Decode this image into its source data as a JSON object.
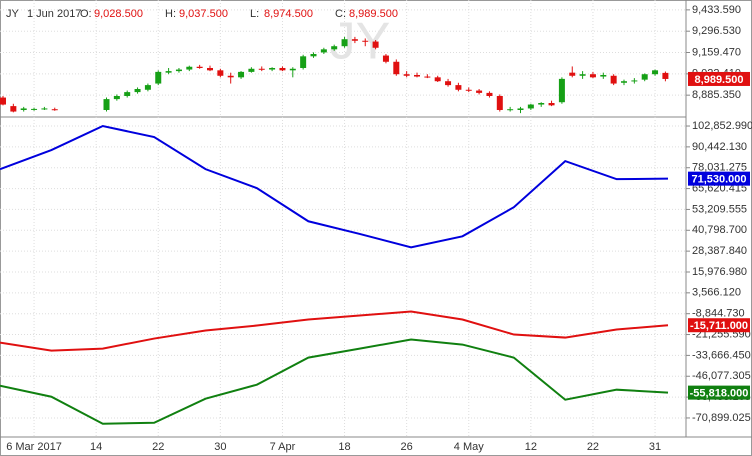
{
  "chart_data": [
    {
      "type": "candlestick",
      "header": {
        "symbol": "JY",
        "date": "1 Jun 2017",
        "fields": [
          {
            "label": "O:",
            "value": "9,028.500"
          },
          {
            "label": "H:",
            "value": "9,037.500"
          },
          {
            "label": "L:",
            "value": "8,974.500"
          },
          {
            "label": "C:",
            "value": "8,989.500"
          }
        ]
      },
      "categories": [
        null,
        null,
        null,
        "6 Mar 2017",
        null,
        null,
        null,
        null,
        null,
        "14",
        null,
        null,
        null,
        null,
        null,
        "22",
        null,
        null,
        null,
        null,
        null,
        "30",
        null,
        null,
        null,
        null,
        null,
        "7 Apr",
        null,
        null,
        null,
        null,
        null,
        "18",
        null,
        null,
        null,
        null,
        null,
        "26",
        null,
        null,
        null,
        null,
        null,
        "4 May",
        null,
        null,
        null,
        null,
        null,
        "12",
        null,
        null,
        null,
        null,
        null,
        "22",
        null,
        null,
        null,
        null,
        null,
        "31",
        null
      ],
      "open": [
        8870,
        8815,
        8790,
        8795,
        8797,
        8795,
        null,
        null,
        null,
        null,
        8790,
        8860,
        8880,
        8905,
        8920,
        8960,
        9030,
        9040,
        9050,
        9068,
        9060,
        9045,
        9010,
        9000,
        9035,
        9055,
        9050,
        9060,
        9045,
        9060,
        9135,
        9160,
        9180,
        9200,
        9245,
        9235,
        9230,
        9140,
        9100,
        9020,
        9015,
        9005,
        9000,
        8975,
        8950,
        8920,
        8915,
        8900,
        8880,
        8790,
        8790,
        8800,
        8825,
        8835,
        8840,
        9030,
        9010,
        9020,
        9005,
        9010,
        8965,
        8975,
        8985,
        9020,
        9028.5
      ],
      "high": [
        8880,
        8830,
        8810,
        8805,
        8810,
        8805,
        null,
        null,
        null,
        null,
        8870,
        8890,
        8915,
        8935,
        8960,
        9045,
        9060,
        9060,
        9075,
        9080,
        9075,
        9055,
        9030,
        9040,
        9065,
        9070,
        9065,
        9070,
        9065,
        9145,
        9160,
        9190,
        9210,
        9260,
        9260,
        9250,
        9240,
        9150,
        9115,
        9040,
        9030,
        9020,
        9010,
        8990,
        8965,
        8935,
        8925,
        8910,
        8890,
        8810,
        8810,
        8830,
        8840,
        8850,
        9000,
        9070,
        9040,
        9035,
        9030,
        9020,
        8985,
        8995,
        9025,
        9050,
        9037.5
      ],
      "low": [
        8820,
        8775,
        8780,
        8785,
        8790,
        8785,
        null,
        null,
        null,
        null,
        8780,
        8850,
        8870,
        8895,
        8910,
        8950,
        9020,
        9030,
        9040,
        9055,
        9040,
        9000,
        8960,
        8990,
        9030,
        9040,
        9040,
        9040,
        9000,
        9050,
        9125,
        9150,
        9170,
        9190,
        9220,
        9200,
        9180,
        9090,
        9010,
        9000,
        9000,
        8995,
        8970,
        8940,
        8910,
        8905,
        8890,
        8870,
        8780,
        8780,
        8770,
        8790,
        8810,
        8815,
        8830,
        9000,
        8990,
        8995,
        8990,
        8950,
        8950,
        8960,
        8975,
        9010,
        8974.5
      ],
      "close": [
        8825,
        8780,
        8800,
        8797,
        8800,
        8790,
        null,
        null,
        null,
        null,
        8860,
        8880,
        8905,
        8925,
        8950,
        9035,
        9040,
        9050,
        9068,
        9060,
        9045,
        9010,
        9000,
        9035,
        9055,
        9050,
        9060,
        9045,
        9055,
        9135,
        9150,
        9180,
        9200,
        9245,
        9235,
        9230,
        9190,
        9100,
        9020,
        9010,
        9005,
        9000,
        8975,
        8950,
        8920,
        8915,
        8900,
        8880,
        8790,
        8795,
        8800,
        8825,
        8835,
        8820,
        8990,
        9010,
        9020,
        9000,
        9015,
        8960,
        8975,
        8980,
        9020,
        9045,
        8989.5
      ],
      "up_color": "#16a016",
      "down_color": "#e01010",
      "last_label": "8,989.500",
      "ylim": [
        8745,
        9497
      ],
      "yticks": [
        {
          "value": 9433.59,
          "label": "9,433.590"
        },
        {
          "value": 9296.53,
          "label": "9,296.530"
        },
        {
          "value": 9159.47,
          "label": "9,159.470"
        },
        {
          "value": 9022.41,
          "label": "9,022.410"
        },
        {
          "value": 8885.35,
          "label": "8,885.350"
        }
      ],
      "grid": true
    },
    {
      "type": "line",
      "categories": [
        null,
        null,
        null,
        null,
        null,
        null,
        null,
        null,
        null,
        null,
        null,
        null,
        null,
        null
      ],
      "series": [
        {
          "color": "#0000dd",
          "values": [
            77195,
            88532,
            102853,
            96289,
            77195,
            65857,
            46166,
            38609,
            30652,
            37216,
            54520,
            81968,
            71228,
            71530
          ],
          "last_label": "71,530.000"
        },
        {
          "color": "#e01010",
          "values": [
            -26034,
            -30808,
            -29614,
            -23647,
            -18874,
            -15890,
            -12310,
            -9923,
            -7536,
            -12310,
            -21261,
            -23051,
            -18277,
            -15711
          ],
          "last_label": "-15,711.000"
        },
        {
          "color": "#108010",
          "values": [
            -51692,
            -58256,
            -74367,
            -73770,
            -59449,
            -51095,
            -34985,
            -29614,
            -24243,
            -27226,
            -34985,
            -60046,
            -54079,
            -55818
          ],
          "last_label": "-55,818.000"
        }
      ],
      "ylim": [
        -82236,
        108223
      ],
      "yticks": [
        {
          "value": 102852.99,
          "label": "102,852.990"
        },
        {
          "value": 90442.13,
          "label": "90,442.130"
        },
        {
          "value": 78031.275,
          "label": "78,031.275"
        },
        {
          "value": 65620.415,
          "label": "65,620.415"
        },
        {
          "value": 53209.555,
          "label": "53,209.555"
        },
        {
          "value": 40798.7,
          "label": "40,798.700"
        },
        {
          "value": 28387.84,
          "label": "28,387.840"
        },
        {
          "value": 15976.98,
          "label": "15,976.980"
        },
        {
          "value": 3566.12,
          "label": "3,566.120"
        },
        {
          "value": -8844.73,
          "label": "-8,844.730"
        },
        {
          "value": -21255.59,
          "label": "-21,255.590"
        },
        {
          "value": -33666.45,
          "label": "-33,666.450"
        },
        {
          "value": -46077.305,
          "label": "-46,077.305"
        },
        {
          "value": -58488.165,
          "label": "-58,488.165"
        },
        {
          "value": -70899.025,
          "label": "-70,899.025"
        }
      ],
      "grid": true
    }
  ]
}
